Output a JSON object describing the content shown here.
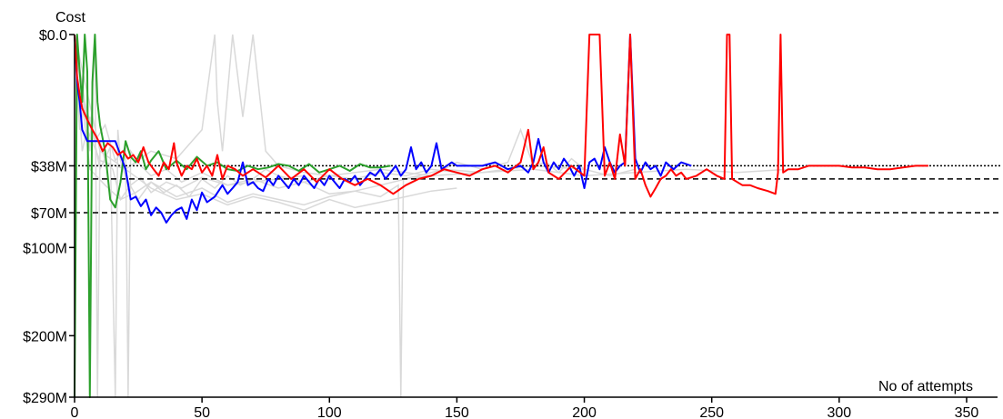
{
  "chart_data": {
    "type": "line",
    "title": "",
    "ylabel": "Cost",
    "xlabel": "No of attempts",
    "xlim": [
      0,
      355
    ],
    "ylim": [
      0,
      290
    ],
    "y_scale": "sqrt",
    "grid": false,
    "legend": "none",
    "x_ticks": [
      {
        "value": 0,
        "label": "0"
      },
      {
        "value": 50,
        "label": "50"
      },
      {
        "value": 100,
        "label": "100"
      },
      {
        "value": 150,
        "label": "150"
      },
      {
        "value": 200,
        "label": "200"
      },
      {
        "value": 250,
        "label": "250"
      },
      {
        "value": 300,
        "label": "300"
      },
      {
        "value": 350,
        "label": "350"
      }
    ],
    "y_ticks": [
      {
        "value": 0,
        "label": "$0.0"
      },
      {
        "value": 38,
        "label": "$38M"
      },
      {
        "value": 70,
        "label": "$70M"
      },
      {
        "value": 100,
        "label": "$100M"
      },
      {
        "value": 200,
        "label": "$200M"
      },
      {
        "value": 290,
        "label": "$290M"
      }
    ],
    "reference_lines": [
      {
        "y": 38,
        "style": "dotted",
        "color": "#000000"
      },
      {
        "y": 46,
        "style": "dashed",
        "color": "#000000"
      },
      {
        "y": 70,
        "style": "dashed",
        "color": "#000000"
      }
    ],
    "series": [
      {
        "color": "#2ca02c",
        "x": [
          0,
          1,
          2,
          3,
          4,
          5,
          6,
          7,
          8,
          9,
          10,
          12,
          14,
          16,
          18,
          20,
          22,
          24,
          26,
          28,
          30,
          33,
          36,
          40,
          44,
          48,
          52,
          56,
          60,
          64,
          68,
          72,
          76,
          80,
          84,
          88,
          92,
          96,
          100,
          104,
          108,
          112,
          116,
          120,
          124
        ],
        "y": [
          290,
          0,
          3,
          10,
          0,
          3,
          290,
          5,
          0,
          10,
          18,
          30,
          60,
          66,
          48,
          25,
          33,
          36,
          30,
          40,
          35,
          30,
          40,
          35,
          40,
          33,
          38,
          36,
          40,
          41,
          38,
          40,
          39,
          37,
          38,
          41,
          37,
          42,
          40,
          38,
          41,
          37,
          39,
          39,
          38
        ]
      },
      {
        "color": "#0000ff",
        "x": [
          0,
          1,
          2,
          3,
          5,
          8,
          12,
          16,
          20,
          22,
          24,
          26,
          28,
          30,
          32,
          34,
          36,
          38,
          40,
          42,
          44,
          46,
          48,
          50,
          52,
          55,
          58,
          60,
          62,
          64,
          66,
          68,
          70,
          72,
          74,
          76,
          78,
          80,
          82,
          84,
          86,
          88,
          90,
          92,
          94,
          96,
          98,
          100,
          102,
          104,
          106,
          108,
          110,
          112,
          114,
          116,
          118,
          120,
          122,
          124,
          126,
          128,
          130,
          132,
          134,
          136,
          138,
          140,
          142,
          144,
          146,
          148,
          150,
          155,
          160,
          165,
          170,
          175,
          178,
          180,
          182,
          184,
          186,
          188,
          190,
          192,
          194,
          196,
          198,
          200,
          202,
          204,
          206,
          208,
          210,
          212,
          214,
          216,
          218,
          220,
          222,
          224,
          226,
          228,
          230,
          232,
          235,
          238,
          242
        ],
        "y": [
          0,
          5,
          10,
          20,
          25,
          25,
          25,
          25,
          40,
          60,
          58,
          65,
          60,
          72,
          66,
          70,
          78,
          72,
          68,
          66,
          75,
          60,
          68,
          55,
          62,
          58,
          50,
          56,
          52,
          48,
          36,
          50,
          48,
          52,
          54,
          46,
          50,
          44,
          48,
          52,
          46,
          50,
          44,
          48,
          52,
          46,
          50,
          44,
          48,
          52,
          46,
          48,
          44,
          50,
          46,
          42,
          44,
          40,
          46,
          42,
          38,
          44,
          40,
          28,
          40,
          36,
          42,
          38,
          26,
          40,
          38,
          36,
          38,
          38,
          38,
          36,
          40,
          38,
          42,
          36,
          24,
          36,
          42,
          36,
          40,
          34,
          38,
          44,
          38,
          52,
          36,
          34,
          40,
          28,
          36,
          42,
          38,
          36,
          0,
          34,
          42,
          36,
          40,
          38,
          44,
          36,
          40,
          36,
          38
        ]
      },
      {
        "color": "#ff0000",
        "x": [
          0,
          1,
          2,
          3,
          5,
          7,
          9,
          11,
          13,
          15,
          17,
          19,
          21,
          23,
          25,
          27,
          29,
          31,
          33,
          35,
          37,
          39,
          40,
          42,
          44,
          46,
          48,
          50,
          52,
          54,
          56,
          58,
          60,
          63,
          66,
          70,
          75,
          80,
          85,
          90,
          95,
          100,
          105,
          110,
          115,
          120,
          125,
          130,
          135,
          140,
          145,
          150,
          155,
          160,
          165,
          170,
          175,
          178,
          180,
          182,
          184,
          186,
          190,
          195,
          200,
          202,
          204,
          206,
          208,
          210,
          212,
          214,
          216,
          218,
          220,
          222,
          224,
          226,
          228,
          230,
          232,
          234,
          236,
          238,
          240,
          244,
          248,
          252,
          255,
          256,
          257,
          258,
          260,
          262,
          265,
          268,
          272,
          275,
          276,
          277,
          278,
          280,
          284,
          288,
          292,
          296,
          300,
          305,
          310,
          315,
          320,
          325,
          330,
          335
        ],
        "y": [
          0,
          4,
          8,
          12,
          16,
          20,
          24,
          30,
          26,
          28,
          32,
          30,
          34,
          32,
          36,
          28,
          36,
          40,
          44,
          36,
          40,
          26,
          36,
          44,
          38,
          40,
          34,
          42,
          38,
          44,
          32,
          46,
          38,
          40,
          44,
          40,
          45,
          38,
          46,
          40,
          48,
          40,
          46,
          50,
          46,
          50,
          56,
          50,
          46,
          44,
          40,
          42,
          44,
          40,
          38,
          42,
          36,
          20,
          40,
          36,
          28,
          42,
          46,
          38,
          44,
          0,
          0,
          0,
          44,
          36,
          46,
          22,
          38,
          0,
          46,
          40,
          50,
          58,
          52,
          46,
          44,
          40,
          44,
          42,
          46,
          44,
          40,
          44,
          46,
          0,
          0,
          46,
          48,
          50,
          50,
          52,
          54,
          56,
          42,
          0,
          42,
          40,
          40,
          38,
          38,
          38,
          38,
          39,
          39,
          40,
          40,
          39,
          38,
          38
        ]
      }
    ],
    "background_series": [
      {
        "color": "#d9d9d9",
        "x": [
          0,
          2,
          4,
          6,
          8,
          9,
          10,
          12,
          15,
          18,
          22,
          26,
          30,
          36,
          42,
          50,
          60,
          70,
          80,
          90
        ],
        "y": [
          0,
          20,
          10,
          30,
          0,
          290,
          25,
          35,
          40,
          60,
          50,
          45,
          55,
          48,
          52,
          45,
          50,
          48,
          46,
          44
        ]
      },
      {
        "color": "#d9d9d9",
        "x": [
          0,
          3,
          6,
          10,
          14,
          16,
          17,
          18,
          20,
          25,
          30,
          35,
          40,
          45,
          50,
          55,
          60,
          65,
          70,
          75,
          80,
          90,
          100,
          110,
          120,
          130,
          140,
          150
        ],
        "y": [
          0,
          30,
          15,
          40,
          28,
          290,
          20,
          35,
          45,
          60,
          48,
          55,
          50,
          58,
          46,
          52,
          44,
          50,
          46,
          40,
          44,
          48,
          44,
          46,
          42,
          44,
          40,
          42
        ]
      },
      {
        "color": "#d9d9d9",
        "x": [
          0,
          4,
          8,
          12,
          16,
          20,
          21,
          22,
          26,
          30,
          36,
          42,
          50,
          60,
          70,
          80,
          90,
          100,
          110,
          120,
          127,
          128,
          129,
          135,
          145,
          160,
          180,
          200
        ],
        "y": [
          0,
          10,
          25,
          18,
          35,
          28,
          290,
          30,
          38,
          44,
          40,
          48,
          42,
          50,
          46,
          52,
          48,
          56,
          54,
          58,
          50,
          290,
          46,
          44,
          40,
          42,
          38,
          40
        ]
      },
      {
        "color": "#d9d9d9",
        "x": [
          0,
          5,
          10,
          20,
          30,
          40,
          50,
          55,
          56,
          58,
          62,
          66,
          70,
          75,
          80,
          90,
          100,
          120,
          140,
          160,
          180,
          200,
          220,
          240,
          260,
          280
        ],
        "y": [
          0,
          20,
          35,
          40,
          30,
          34,
          20,
          0,
          10,
          30,
          0,
          15,
          0,
          30,
          38,
          42,
          44,
          40,
          44,
          42,
          40,
          44,
          42,
          40,
          42,
          40
        ]
      },
      {
        "color": "#d9d9d9",
        "x": [
          0,
          6,
          12,
          18,
          24,
          30,
          40,
          50,
          60,
          70,
          80,
          90,
          100,
          110,
          120,
          130,
          140,
          150,
          160,
          170,
          175,
          180,
          185,
          190,
          195,
          200,
          210,
          220
        ],
        "y": [
          0,
          40,
          50,
          60,
          55,
          48,
          58,
          52,
          62,
          56,
          60,
          64,
          58,
          54,
          50,
          46,
          44,
          36,
          40,
          36,
          20,
          38,
          36,
          42,
          34,
          40,
          44,
          40
        ]
      },
      {
        "color": "#d9d9d9",
        "x": [
          0,
          10,
          20,
          30,
          40,
          50,
          60,
          70,
          80,
          90,
          100,
          110,
          120,
          130,
          140,
          150
        ],
        "y": [
          0,
          30,
          40,
          52,
          60,
          56,
          64,
          58,
          62,
          68,
          60,
          66,
          62,
          58,
          54,
          52
        ]
      }
    ]
  }
}
